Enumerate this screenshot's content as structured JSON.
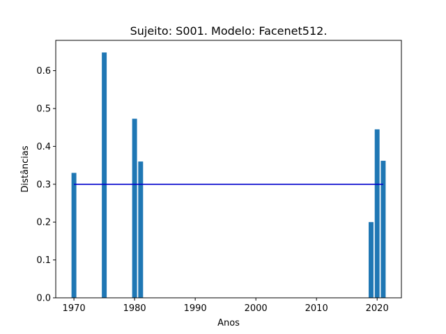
{
  "chart_data": {
    "type": "bar",
    "title": "Sujeito: S001. Modelo: Facenet512.",
    "xlabel": "Anos",
    "ylabel": "Distâncias",
    "xlim": [
      1967,
      2024
    ],
    "ylim": [
      0,
      0.68
    ],
    "x_ticks": [
      1970,
      1980,
      1990,
      2000,
      2010,
      2020
    ],
    "y_ticks": [
      0.0,
      0.1,
      0.2,
      0.3,
      0.4,
      0.5,
      0.6
    ],
    "bar_width_years": 0.8,
    "bar_color": "#1f77b4",
    "grid": false,
    "series": [
      {
        "x": [
          1970,
          1975,
          1980,
          1981,
          2019,
          2020,
          2021
        ],
        "values": [
          0.33,
          0.648,
          0.473,
          0.36,
          0.2,
          0.445,
          0.362
        ]
      }
    ],
    "threshold_line": {
      "y": 0.3,
      "x_start": 1970,
      "x_end": 2021,
      "color": "#0000cc"
    }
  }
}
